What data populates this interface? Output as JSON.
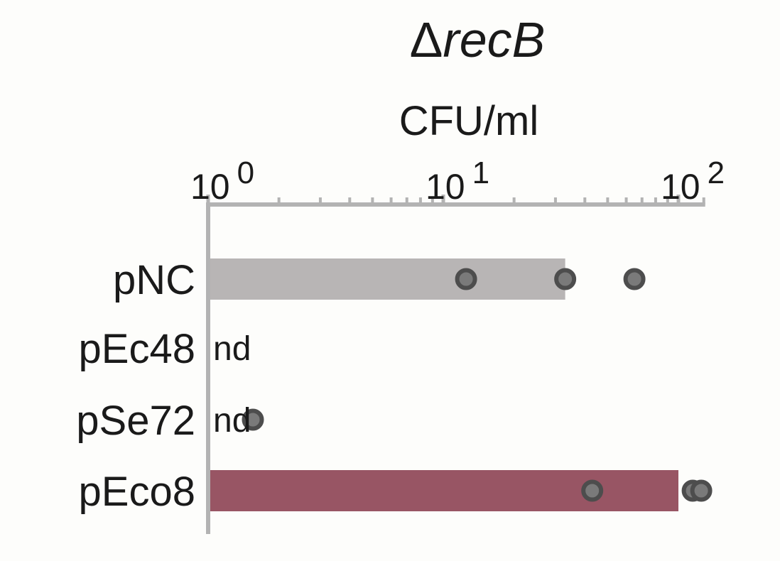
{
  "chart_data": {
    "type": "bar",
    "title_symbol": "Δ",
    "title_italic": "recB",
    "xlabel": "CFU/ml",
    "xscale": "log",
    "xlim": [
      1,
      130
    ],
    "x_major_ticks": [
      {
        "base": "10",
        "exp": "0",
        "value": 1
      },
      {
        "base": "10",
        "exp": "1",
        "value": 10
      },
      {
        "base": "10",
        "exp": "2",
        "value": 100
      }
    ],
    "categories": [
      "pNC",
      "pEc48",
      "pSe72",
      "pEco8"
    ],
    "bars": [
      {
        "label": "pNC",
        "value": 33,
        "color": "#b8b5b5",
        "points": [
          12.5,
          33,
          65
        ],
        "note": ""
      },
      {
        "label": "pEc48",
        "value": null,
        "color": "#b8b5b5",
        "points": [],
        "note": "nd"
      },
      {
        "label": "pSe72",
        "value": null,
        "color": "#b8b5b5",
        "points": [
          1.55
        ],
        "note": "nd"
      },
      {
        "label": "pEco8",
        "value": 100,
        "color": "#985564",
        "points": [
          43,
          115,
          125
        ],
        "note": ""
      }
    ],
    "point_color": "#4d4d4d",
    "axis_color": "#b3b3b3",
    "grid": false
  }
}
